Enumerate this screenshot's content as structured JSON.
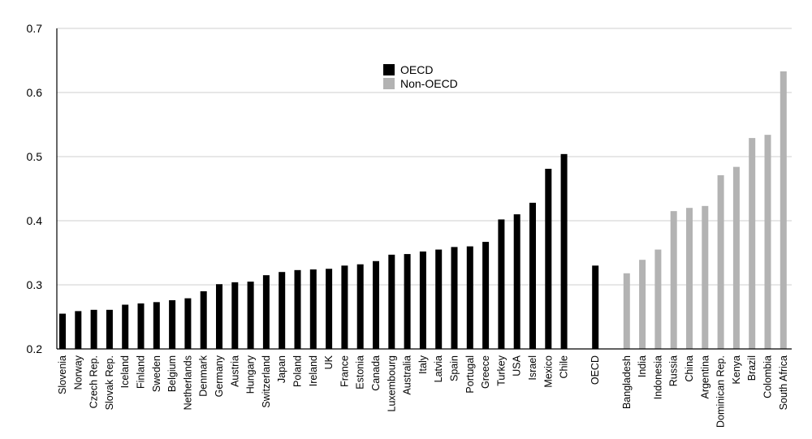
{
  "chart_data": {
    "type": "bar",
    "title": "",
    "xlabel": "",
    "ylabel": "",
    "ylim": [
      0.2,
      0.7
    ],
    "yticks": [
      "0.2",
      "0.3",
      "0.4",
      "0.5",
      "0.6",
      "0.7"
    ],
    "grid": true,
    "legend_position": "top-center",
    "colors": {
      "OECD": "#000000",
      "Non-OECD": "#b3b3b3"
    },
    "series": [
      {
        "name": "OECD",
        "color": "#000000",
        "categories": [
          "Slovenia",
          "Norway",
          "Czech Rep.",
          "Slovak Rep.",
          "Iceland",
          "Finland",
          "Sweden",
          "Belgium",
          "Netherlands",
          "Denmark",
          "Germany",
          "Austria",
          "Hungary",
          "Switzerland",
          "Japan",
          "Poland",
          "Ireland",
          "UK",
          "France",
          "Estonia",
          "Canada",
          "Luxembourg",
          "Australia",
          "Italy",
          "Latvia",
          "Spain",
          "Portugal",
          "Greece",
          "Turkey",
          "USA",
          "Israel",
          "Mexico",
          "Chile",
          "OECD"
        ],
        "values": [
          0.255,
          0.259,
          0.261,
          0.261,
          0.269,
          0.271,
          0.273,
          0.276,
          0.279,
          0.29,
          0.301,
          0.304,
          0.305,
          0.315,
          0.32,
          0.323,
          0.324,
          0.325,
          0.33,
          0.332,
          0.337,
          0.347,
          0.348,
          0.352,
          0.355,
          0.359,
          0.36,
          0.367,
          0.402,
          0.41,
          0.428,
          0.481,
          0.504,
          0.33
        ]
      },
      {
        "name": "Non-OECD",
        "color": "#b3b3b3",
        "categories": [
          "Bangladesh",
          "India",
          "Indonesia",
          "Russia",
          "China",
          "Argentina",
          "Dominican Rep.",
          "Kenya",
          "Brazil",
          "Colombia",
          "South Africa"
        ],
        "values": [
          0.318,
          0.339,
          0.355,
          0.415,
          0.42,
          0.423,
          0.471,
          0.484,
          0.529,
          0.534,
          0.633
        ]
      }
    ]
  }
}
